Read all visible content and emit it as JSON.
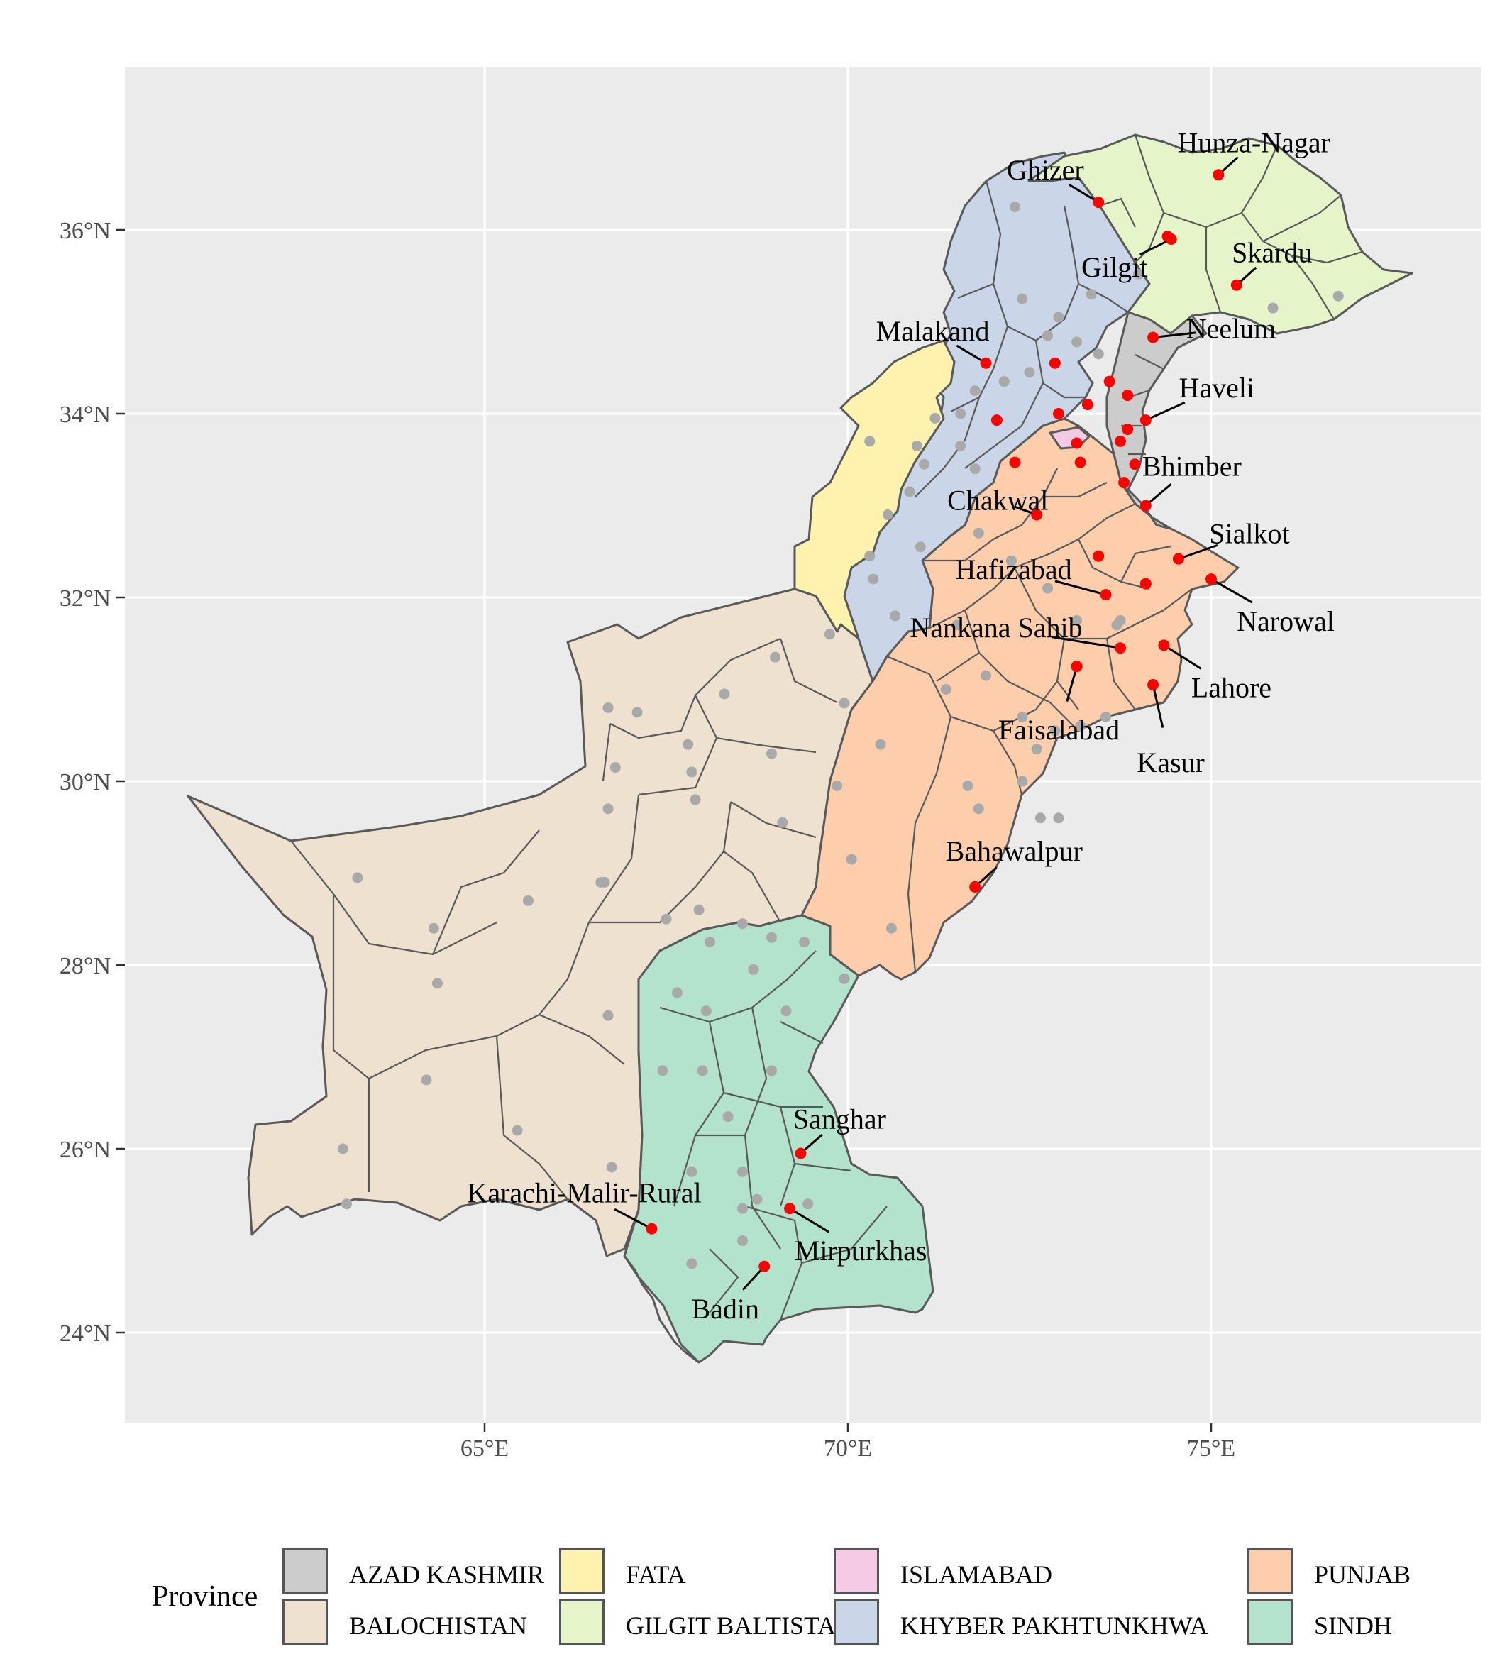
{
  "map": {
    "background": "#ebebeb",
    "grid_color": "#ffffff",
    "x_ticks": [
      {
        "lon": 65,
        "label": "65°E"
      },
      {
        "lon": 70,
        "label": "70°E"
      },
      {
        "lon": 75,
        "label": "75°E"
      }
    ],
    "y_ticks": [
      {
        "lat": 24,
        "label": "24°N"
      },
      {
        "lat": 26,
        "label": "26°N"
      },
      {
        "lat": 28,
        "label": "28°N"
      },
      {
        "lat": 30,
        "label": "30°N"
      },
      {
        "lat": 32,
        "label": "32°N"
      },
      {
        "lat": 34,
        "label": "34°N"
      },
      {
        "lat": 36,
        "label": "36°N"
      }
    ],
    "provinces": [
      {
        "name": "BALOCHISTAN",
        "color": "#efe1cf"
      },
      {
        "name": "SINDH",
        "color": "#b3e2cd"
      },
      {
        "name": "PUNJAB",
        "color": "#fdcdac"
      },
      {
        "name": "KHYBER PAKHTUNKHWA",
        "color": "#cbd5e8"
      },
      {
        "name": "FATA",
        "color": "#fff2ae"
      },
      {
        "name": "GILGIT BALTISTAN",
        "color": "#e6f5c9"
      },
      {
        "name": "AZAD KASHMIR",
        "color": "#cccccc"
      },
      {
        "name": "ISLAMABAD",
        "color": "#f4cae4"
      }
    ],
    "labelled_districts": [
      {
        "name": "Hunza-Nagar",
        "lon": 75.1,
        "lat": 36.6
      },
      {
        "name": "Ghizer",
        "lon": 73.45,
        "lat": 36.3
      },
      {
        "name": "Gilgit",
        "lon": 74.45,
        "lat": 35.9
      },
      {
        "name": "Skardu",
        "lon": 75.35,
        "lat": 35.4
      },
      {
        "name": "Neelum",
        "lon": 74.2,
        "lat": 34.83
      },
      {
        "name": "Malakand",
        "lon": 71.9,
        "lat": 34.55
      },
      {
        "name": "Haveli",
        "lon": 74.1,
        "lat": 33.93
      },
      {
        "name": "Bhimber",
        "lon": 74.1,
        "lat": 33.0
      },
      {
        "name": "Chakwal",
        "lon": 72.6,
        "lat": 32.9
      },
      {
        "name": "Sialkot",
        "lon": 74.55,
        "lat": 32.42
      },
      {
        "name": "Hafizabad",
        "lon": 73.55,
        "lat": 32.03
      },
      {
        "name": "Narowal",
        "lon": 75.0,
        "lat": 32.2
      },
      {
        "name": "Nankana Sahib",
        "lon": 73.75,
        "lat": 31.45
      },
      {
        "name": "Lahore",
        "lon": 74.35,
        "lat": 31.48
      },
      {
        "name": "Faisalabad",
        "lon": 73.15,
        "lat": 31.25
      },
      {
        "name": "Kasur",
        "lon": 74.2,
        "lat": 31.05
      },
      {
        "name": "Bahawalpur",
        "lon": 71.75,
        "lat": 28.85
      },
      {
        "name": "Sanghar",
        "lon": 69.35,
        "lat": 25.95
      },
      {
        "name": "Karachi-Malir-Rural",
        "lon": 67.3,
        "lat": 25.13
      },
      {
        "name": "Mirpurkhas",
        "lon": 69.2,
        "lat": 25.35
      },
      {
        "name": "Badin",
        "lon": 68.85,
        "lat": 24.72
      }
    ],
    "unlabelled_red_districts": [
      {
        "lon": 74.4,
        "lat": 35.93
      },
      {
        "lon": 72.85,
        "lat": 34.55
      },
      {
        "lon": 73.6,
        "lat": 34.35
      },
      {
        "lon": 73.85,
        "lat": 34.2
      },
      {
        "lon": 72.9,
        "lat": 34.0
      },
      {
        "lon": 73.3,
        "lat": 34.1
      },
      {
        "lon": 72.05,
        "lat": 33.93
      },
      {
        "lon": 73.85,
        "lat": 33.83
      },
      {
        "lon": 73.15,
        "lat": 33.68
      },
      {
        "lon": 73.75,
        "lat": 33.7
      },
      {
        "lon": 72.3,
        "lat": 33.47
      },
      {
        "lon": 73.2,
        "lat": 33.47
      },
      {
        "lon": 73.95,
        "lat": 33.45
      },
      {
        "lon": 73.8,
        "lat": 33.25
      },
      {
        "lon": 73.45,
        "lat": 32.45
      },
      {
        "lon": 74.1,
        "lat": 32.15
      },
      {
        "lon": 73.15,
        "lat": 31.25
      }
    ],
    "grey_centroids": [
      [
        72.3,
        36.25
      ],
      [
        74.0,
        35.52
      ],
      [
        75.85,
        35.15
      ],
      [
        76.75,
        35.28
      ],
      [
        73.35,
        35.3
      ],
      [
        72.4,
        35.25
      ],
      [
        72.9,
        35.05
      ],
      [
        72.75,
        34.85
      ],
      [
        73.15,
        34.78
      ],
      [
        73.45,
        34.65
      ],
      [
        72.5,
        34.45
      ],
      [
        72.15,
        34.35
      ],
      [
        71.75,
        34.25
      ],
      [
        71.55,
        34.0
      ],
      [
        71.2,
        33.95
      ],
      [
        70.3,
        33.7
      ],
      [
        70.95,
        33.65
      ],
      [
        71.55,
        33.65
      ],
      [
        71.75,
        33.4
      ],
      [
        71.05,
        33.45
      ],
      [
        70.85,
        33.15
      ],
      [
        70.55,
        32.9
      ],
      [
        71.0,
        32.55
      ],
      [
        70.3,
        32.45
      ],
      [
        70.35,
        32.2
      ],
      [
        70.65,
        31.8
      ],
      [
        69.75,
        31.6
      ],
      [
        69.95,
        30.85
      ],
      [
        69.0,
        31.35
      ],
      [
        68.3,
        30.95
      ],
      [
        67.1,
        30.75
      ],
      [
        66.7,
        30.8
      ],
      [
        66.8,
        30.15
      ],
      [
        66.7,
        29.7
      ],
      [
        67.8,
        30.4
      ],
      [
        67.85,
        30.1
      ],
      [
        67.9,
        29.8
      ],
      [
        68.95,
        30.3
      ],
      [
        69.1,
        29.55
      ],
      [
        69.85,
        29.95
      ],
      [
        66.6,
        28.9
      ],
      [
        66.65,
        28.9
      ],
      [
        65.6,
        28.7
      ],
      [
        64.3,
        28.4
      ],
      [
        67.5,
        28.5
      ],
      [
        67.95,
        28.6
      ],
      [
        68.55,
        28.45
      ],
      [
        68.1,
        28.25
      ],
      [
        68.95,
        28.3
      ],
      [
        69.4,
        28.25
      ],
      [
        69.95,
        27.85
      ],
      [
        68.7,
        27.95
      ],
      [
        67.65,
        27.7
      ],
      [
        68.05,
        27.5
      ],
      [
        69.15,
        27.5
      ],
      [
        67.45,
        26.85
      ],
      [
        68.0,
        26.85
      ],
      [
        68.95,
        26.85
      ],
      [
        68.35,
        26.35
      ],
      [
        67.85,
        25.75
      ],
      [
        68.55,
        25.75
      ],
      [
        68.55,
        25.35
      ],
      [
        68.75,
        25.45
      ],
      [
        69.45,
        25.4
      ],
      [
        68.55,
        25.0
      ],
      [
        67.85,
        24.75
      ],
      [
        70.45,
        30.4
      ],
      [
        70.05,
        29.15
      ],
      [
        70.6,
        28.4
      ],
      [
        71.65,
        29.95
      ],
      [
        71.8,
        29.7
      ],
      [
        72.4,
        30.0
      ],
      [
        72.6,
        30.35
      ],
      [
        72.65,
        29.6
      ],
      [
        72.9,
        29.6
      ],
      [
        71.35,
        31.0
      ],
      [
        71.9,
        31.15
      ],
      [
        71.5,
        31.7
      ],
      [
        71.8,
        32.7
      ],
      [
        72.25,
        32.4
      ],
      [
        72.75,
        32.1
      ],
      [
        73.15,
        31.75
      ],
      [
        73.75,
        31.75
      ],
      [
        73.7,
        31.7
      ],
      [
        73.2,
        30.6
      ],
      [
        72.85,
        30.55
      ],
      [
        73.55,
        30.7
      ],
      [
        72.4,
        30.7
      ],
      [
        66.7,
        27.45
      ],
      [
        64.35,
        27.8
      ],
      [
        63.25,
        28.95
      ],
      [
        63.05,
        26.0
      ],
      [
        63.1,
        25.4
      ],
      [
        64.2,
        26.75
      ],
      [
        65.45,
        26.2
      ],
      [
        66.75,
        25.8
      ]
    ]
  },
  "legend": {
    "title": "Province",
    "items": [
      {
        "label": "AZAD KASHMIR",
        "color": "#cccccc"
      },
      {
        "label": "BALOCHISTAN",
        "color": "#efe1cf"
      },
      {
        "label": "FATA",
        "color": "#fff2ae"
      },
      {
        "label": "GILGIT BALTISTAN",
        "color": "#e6f5c9"
      },
      {
        "label": "ISLAMABAD",
        "color": "#f4cae4"
      },
      {
        "label": "KHYBER PAKHTUNKHWA",
        "color": "#cbd5e8"
      },
      {
        "label": "PUNJAB",
        "color": "#fdcdac"
      },
      {
        "label": "SINDH",
        "color": "#b3e2cd"
      }
    ]
  }
}
